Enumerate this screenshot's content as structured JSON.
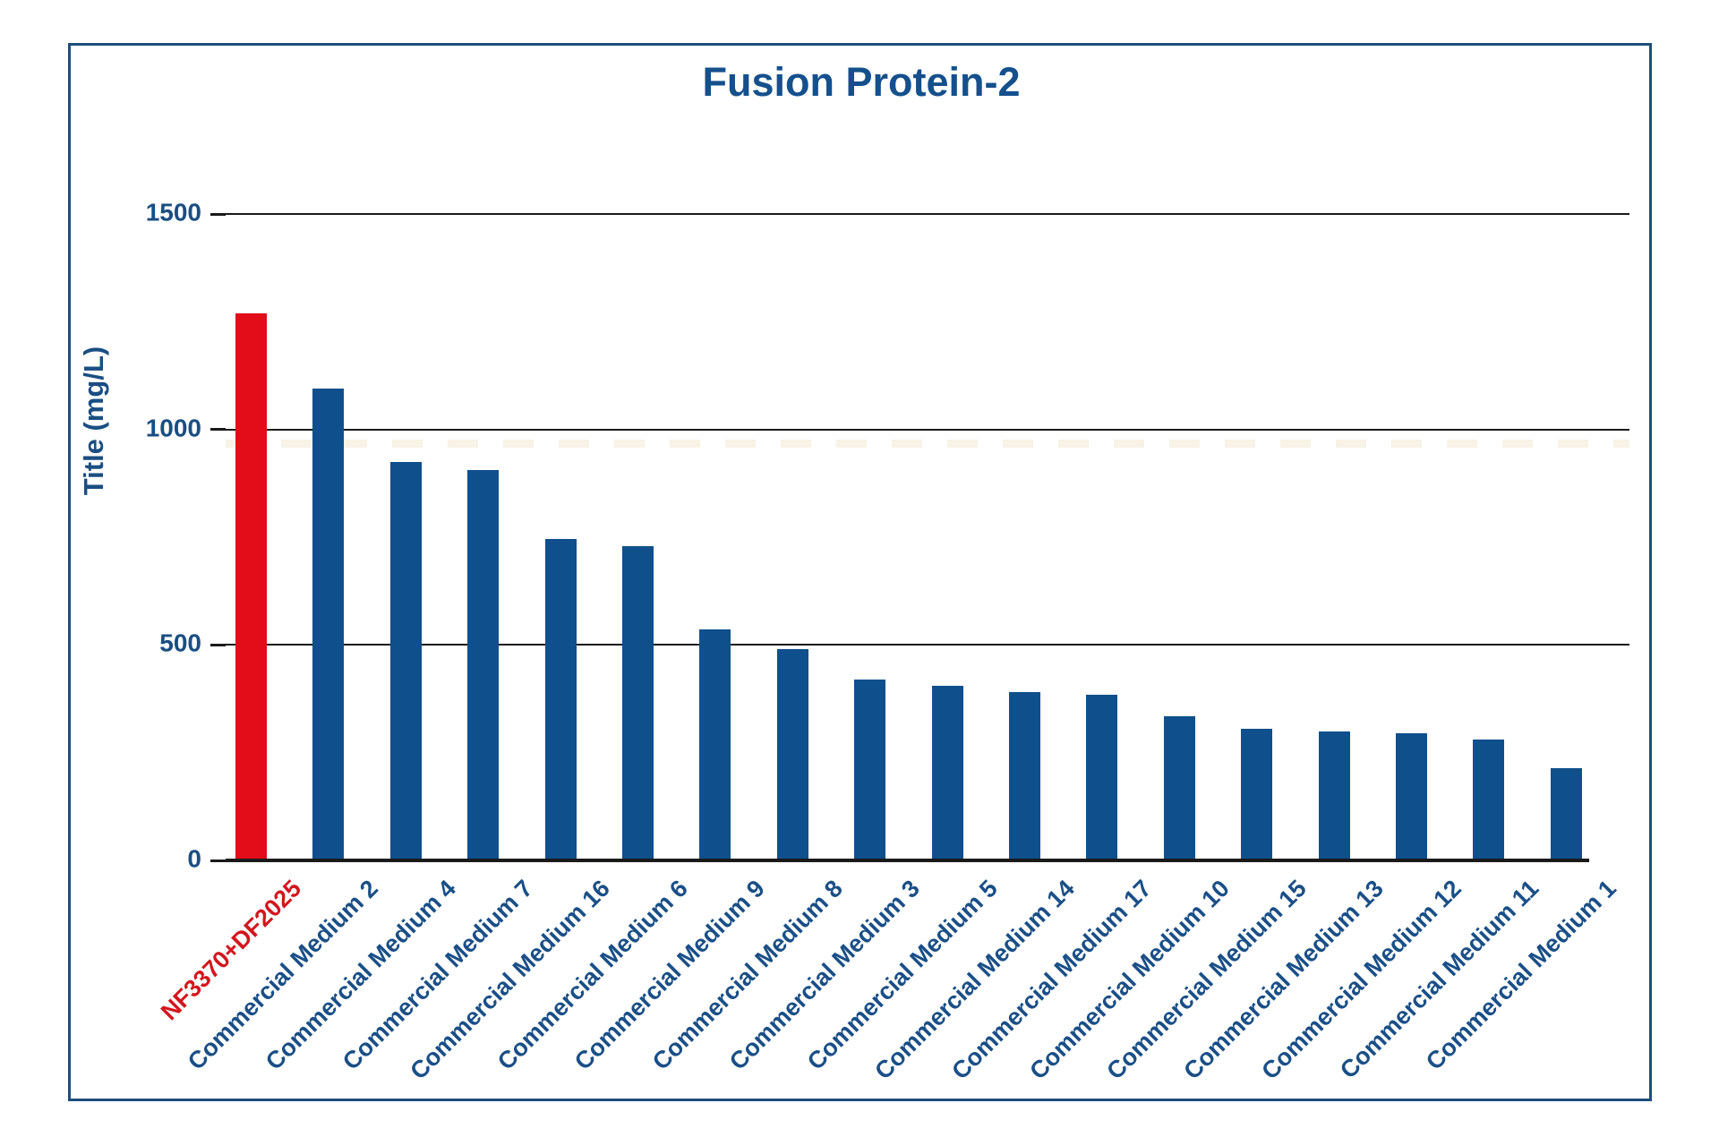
{
  "chart_data": {
    "type": "bar",
    "title": "Fusion Protein-2",
    "xlabel": "",
    "ylabel": "Title (mg/L)",
    "ylim": [
      0,
      1500
    ],
    "yticks": [
      0,
      500,
      1000,
      1500
    ],
    "grid": "horizontal-solid",
    "legend": "none",
    "categories": [
      "NF3370+DF2025",
      "Commercial Medium 2",
      "Commercial Medium 4",
      "Commercial Medium 7",
      "Commercial Medium 16",
      "Commercial Medium 6",
      "Commercial Medium 9",
      "Commercial Medium 8",
      "Commercial Medium 3",
      "Commercial Medium 5",
      "Commercial Medium 14",
      "Commercial Medium 17",
      "Commercial Medium 10",
      "Commercial Medium 15",
      "Commercial Medium 13",
      "Commercial Medium 12",
      "Commercial Medium 11",
      "Commercial Medium 1"
    ],
    "values": [
      1270,
      1095,
      925,
      905,
      745,
      730,
      535,
      490,
      420,
      405,
      390,
      385,
      335,
      305,
      300,
      295,
      280,
      215
    ],
    "highlight_index": 0,
    "colors": {
      "bar": "#0f4f8c",
      "highlight_bar": "#e20d18",
      "category_label": "#1a4f87",
      "highlight_category_label": "#d4161e",
      "title_text": "#14508c",
      "axis_text": "#1a4e82",
      "gridline": "#1a1a1a",
      "frame_border": "#1d4e7c"
    }
  }
}
